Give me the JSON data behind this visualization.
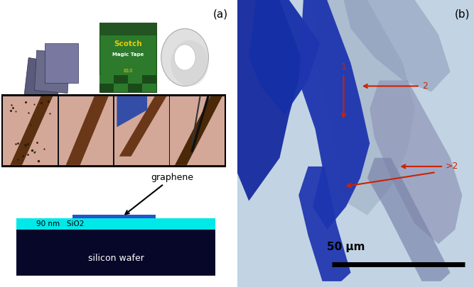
{
  "fig_label_a": "(a)",
  "fig_label_b": "(b)",
  "graphene_label": "graphene",
  "sio2_label": "90 nm   SiO2",
  "wafer_label": "silicon wafer",
  "scale_bar_label": "50 μm",
  "annotation_1": "1",
  "annotation_2": "2",
  "annotation_gt2": ">2",
  "bg_color_right": "#c5d8e8",
  "silicon_color": "#07072a",
  "sio2_color": "#00e8e8",
  "graphene_color_top": "#2255cc",
  "label_color": "#cc2200",
  "fig_width": 6.67,
  "fig_height": 4.05,
  "left_bg": "#ffffff",
  "panel_bg": "#daaaa0",
  "tape_green": "#2d7a2d",
  "tape_yellow": "#e8cc00",
  "graphite_color": "#7a7a9a",
  "flake_blue_dark": "#1a2e9a",
  "flake_blue_med": "#2040b8",
  "flake_lavender": "#9090b8",
  "flake_lightblue": "#b8c8da"
}
